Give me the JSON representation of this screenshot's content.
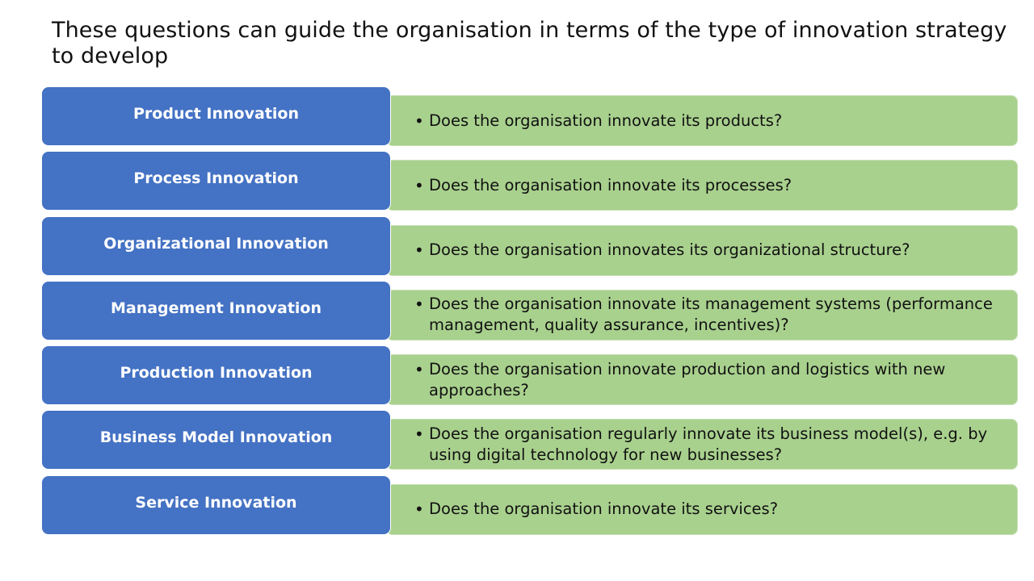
{
  "slide": {
    "title": "These questions can guide the organisation in terms of the type of innovation strategy to develop"
  },
  "rows": [
    {
      "label": "Product Innovation",
      "question": "Does the organisation innovate its products?"
    },
    {
      "label": "Process Innovation",
      "question": "Does the organisation innovate its processes?"
    },
    {
      "label": "Organizational Innovation",
      "question": "Does the organisation innovates its organizational structure?"
    },
    {
      "label": "Management Innovation",
      "question": "Does the organisation innovate its management systems (performance management, quality assurance, incentives)?"
    },
    {
      "label": "Production Innovation",
      "question": "Does the organisation innovate production and logistics with new approaches?"
    },
    {
      "label": "Business Model Innovation",
      "question": "Does the organisation regularly innovate its business model(s), e.g. by using digital technology for new businesses?"
    },
    {
      "label": "Service Innovation",
      "question": "Does the organisation innovate its services?"
    }
  ],
  "colors": {
    "label_box": "#4472c4",
    "question_box": "#a9d18e",
    "label_text": "#ffffff",
    "question_text": "#111111"
  },
  "icons": {
    "bullet": "bullet-dot-icon"
  }
}
